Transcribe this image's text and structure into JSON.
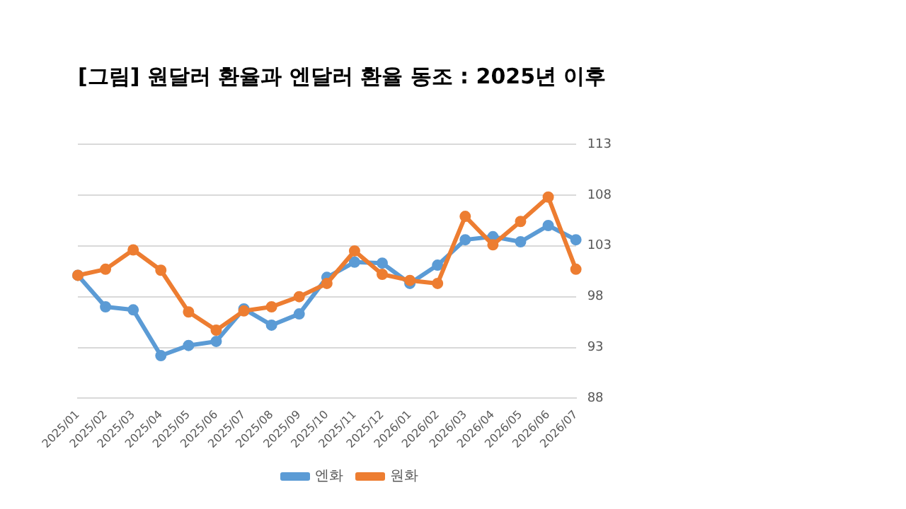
{
  "chart_data": {
    "type": "line",
    "title": "[그림] 원달러 환율과 엔달러 환율 동조 : 2025년 이후",
    "categories": [
      "2025/01",
      "2025/02",
      "2025/03",
      "2025/04",
      "2025/05",
      "2025/06",
      "2025/07",
      "2025/08",
      "2025/09",
      "2025/10",
      "2025/11",
      "2025/12",
      "2026/01",
      "2026/02",
      "2026/03",
      "2026/04",
      "2026/05",
      "2026/06",
      "2026/07"
    ],
    "series": [
      {
        "name": "엔화",
        "color": "#5b9bd5",
        "values": [
          100.1,
          97.0,
          96.7,
          92.2,
          93.2,
          93.6,
          96.8,
          95.2,
          96.3,
          99.9,
          101.4,
          101.3,
          99.3,
          101.1,
          103.6,
          103.9,
          103.4,
          105.0,
          103.6
        ]
      },
      {
        "name": "원화",
        "color": "#ed7d31",
        "values": [
          100.1,
          100.7,
          102.6,
          100.6,
          96.5,
          94.7,
          96.6,
          97.0,
          98.0,
          99.3,
          102.5,
          100.2,
          99.6,
          99.3,
          105.9,
          103.1,
          105.4,
          107.8,
          100.7
        ]
      }
    ],
    "ylim": [
      88,
      113
    ],
    "yticks": [
      88,
      93,
      98,
      103,
      108,
      113
    ],
    "grid": "y",
    "legend": "bottom",
    "marker": "circle",
    "line_style": "solid"
  }
}
